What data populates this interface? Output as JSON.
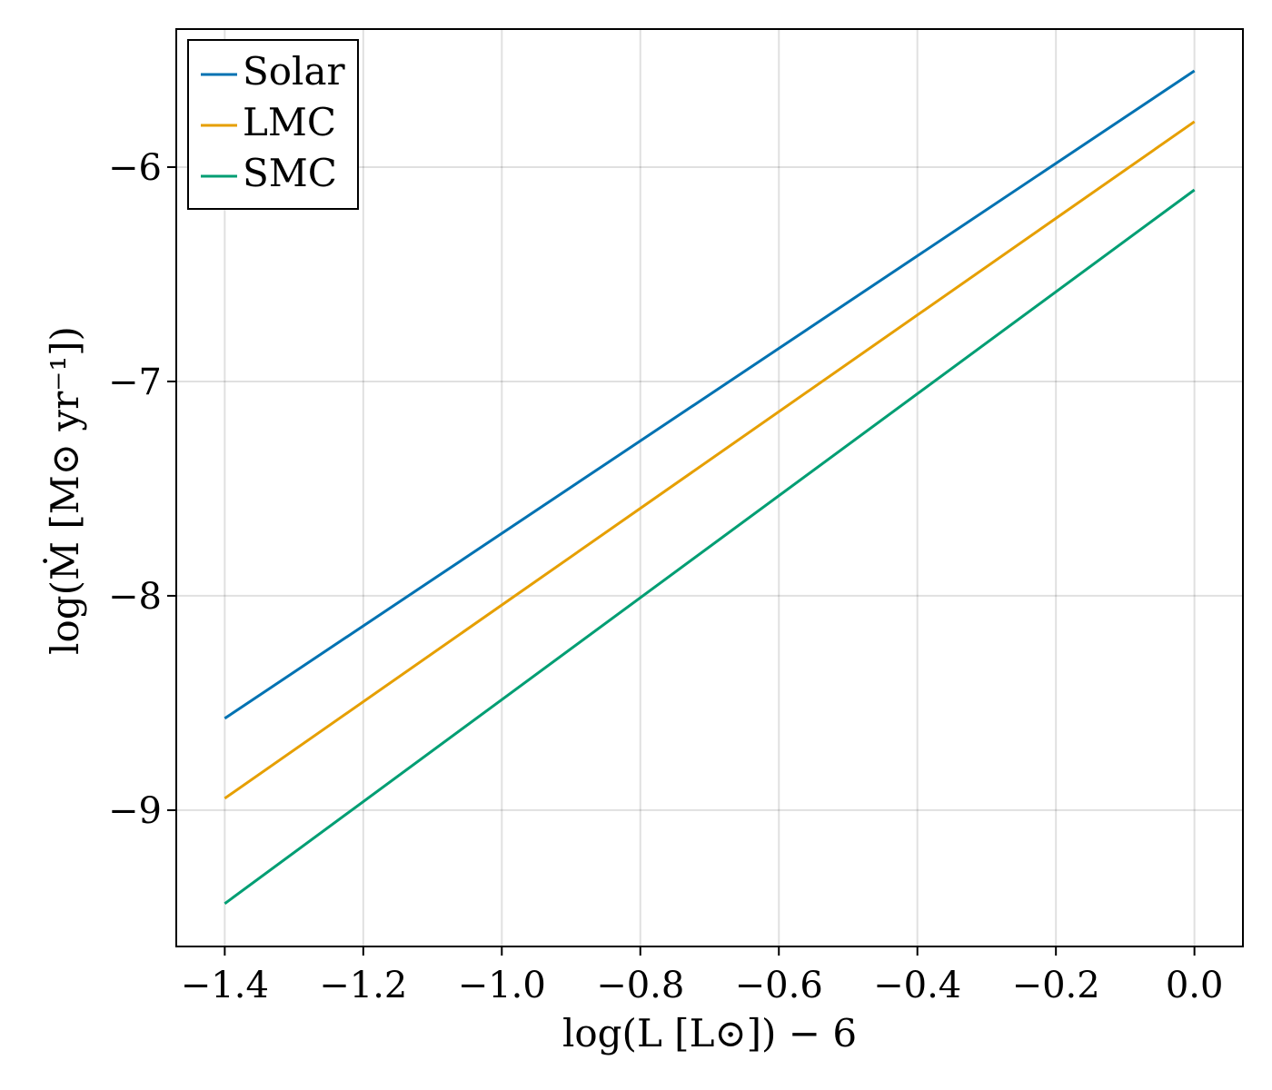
{
  "chart_data": {
    "type": "line",
    "x_label": "log(L [L⊙]) − 6",
    "y_label": "log(Ṁ [M⊙ yr⁻¹])",
    "x": [
      -1.4,
      0.0
    ],
    "series": [
      {
        "name": "Solar",
        "color": "#0072b2",
        "values": [
          -8.572,
          -5.551
        ]
      },
      {
        "name": "LMC",
        "color": "#e69f00",
        "values": [
          -8.945,
          -5.788
        ]
      },
      {
        "name": "SMC",
        "color": "#009e73",
        "values": [
          -9.436,
          -6.106
        ]
      }
    ],
    "xlim": [
      -1.47,
      0.07
    ],
    "ylim": [
      -9.636,
      -5.356
    ],
    "xticks": [
      {
        "value": -1.4,
        "label": "−1.4"
      },
      {
        "value": -1.2,
        "label": "−1.2"
      },
      {
        "value": -1.0,
        "label": "−1.0"
      },
      {
        "value": -0.8,
        "label": "−0.8"
      },
      {
        "value": -0.6,
        "label": "−0.6"
      },
      {
        "value": -0.4,
        "label": "−0.4"
      },
      {
        "value": -0.2,
        "label": "−0.2"
      },
      {
        "value": 0,
        "label": "0.0"
      }
    ],
    "yticks": [
      {
        "value": -9,
        "label": "−9"
      },
      {
        "value": -8,
        "label": "−8"
      },
      {
        "value": -7,
        "label": "−7"
      },
      {
        "value": -6,
        "label": "−6"
      }
    ],
    "grid": true,
    "legend": "top-left"
  }
}
